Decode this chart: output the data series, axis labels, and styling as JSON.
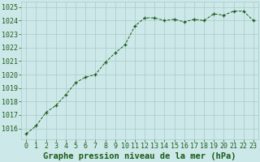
{
  "x": [
    0,
    1,
    2,
    3,
    4,
    5,
    6,
    7,
    8,
    9,
    10,
    11,
    12,
    13,
    14,
    15,
    16,
    17,
    18,
    19,
    20,
    21,
    22,
    23
  ],
  "y": [
    1015.6,
    1016.2,
    1017.2,
    1017.7,
    1018.5,
    1019.4,
    1019.8,
    1020.0,
    1020.9,
    1021.6,
    1022.2,
    1023.6,
    1024.2,
    1024.2,
    1024.0,
    1024.1,
    1023.9,
    1024.1,
    1024.0,
    1024.5,
    1024.4,
    1024.7,
    1024.7,
    1024.0
  ],
  "line_color": "#1a5c1a",
  "marker": "+",
  "bg_color": "#cce8e8",
  "grid_color": "#aacaca",
  "xlabel": "Graphe pression niveau de la mer (hPa)",
  "xlabel_fontsize": 7.5,
  "xlabel_color": "#1a5c1a",
  "xlabel_bold": true,
  "ylim": [
    1015.2,
    1025.4
  ],
  "xlim": [
    -0.5,
    23.5
  ],
  "yticks": [
    1016,
    1017,
    1018,
    1019,
    1020,
    1021,
    1022,
    1023,
    1024,
    1025
  ],
  "xticks": [
    0,
    1,
    2,
    3,
    4,
    5,
    6,
    7,
    8,
    9,
    10,
    11,
    12,
    13,
    14,
    15,
    16,
    17,
    18,
    19,
    20,
    21,
    22,
    23
  ],
  "tick_fontsize": 6,
  "tick_color": "#1a5c1a",
  "linewidth": 0.7,
  "markersize": 3.5,
  "markeredgewidth": 0.9
}
